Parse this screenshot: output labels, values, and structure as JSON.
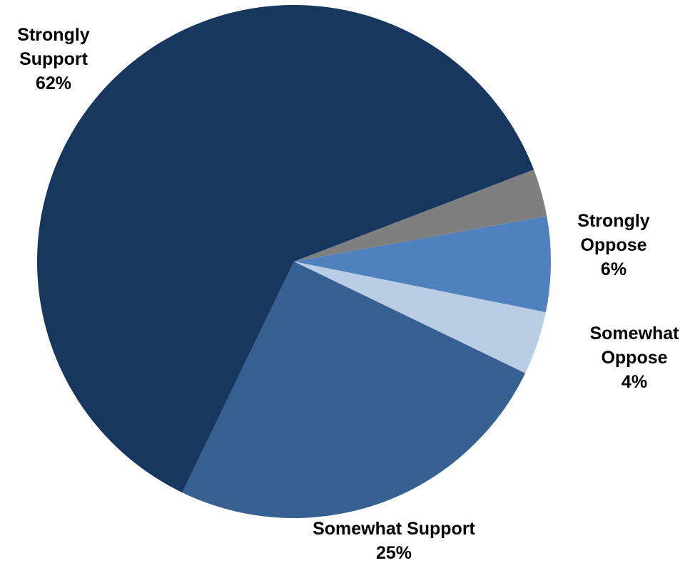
{
  "chart_data": {
    "type": "pie",
    "title": "",
    "start_angle_deg": 21,
    "direction": "clockwise",
    "slices": [
      {
        "name": "Strongly Oppose",
        "value": 3,
        "color": "#7f7f7f",
        "label_lines": []
      },
      {
        "name": "Strongly Oppose",
        "value": 6,
        "color": "#4f81bd",
        "label_lines": [
          "Strongly",
          "Oppose",
          "6%"
        ]
      },
      {
        "name": "Somewhat Oppose",
        "value": 4,
        "color": "#b9cde5",
        "label_lines": [
          "Somewhat",
          "Oppose",
          "4%"
        ]
      },
      {
        "name": "Somewhat Support",
        "value": 25,
        "color": "#376092",
        "label_lines": [
          "Somewhat Support",
          "25%"
        ]
      },
      {
        "name": "Strongly Support",
        "value": 62,
        "color": "#17375e",
        "label_lines": [
          "Strongly",
          "Support",
          "62%"
        ]
      }
    ]
  }
}
